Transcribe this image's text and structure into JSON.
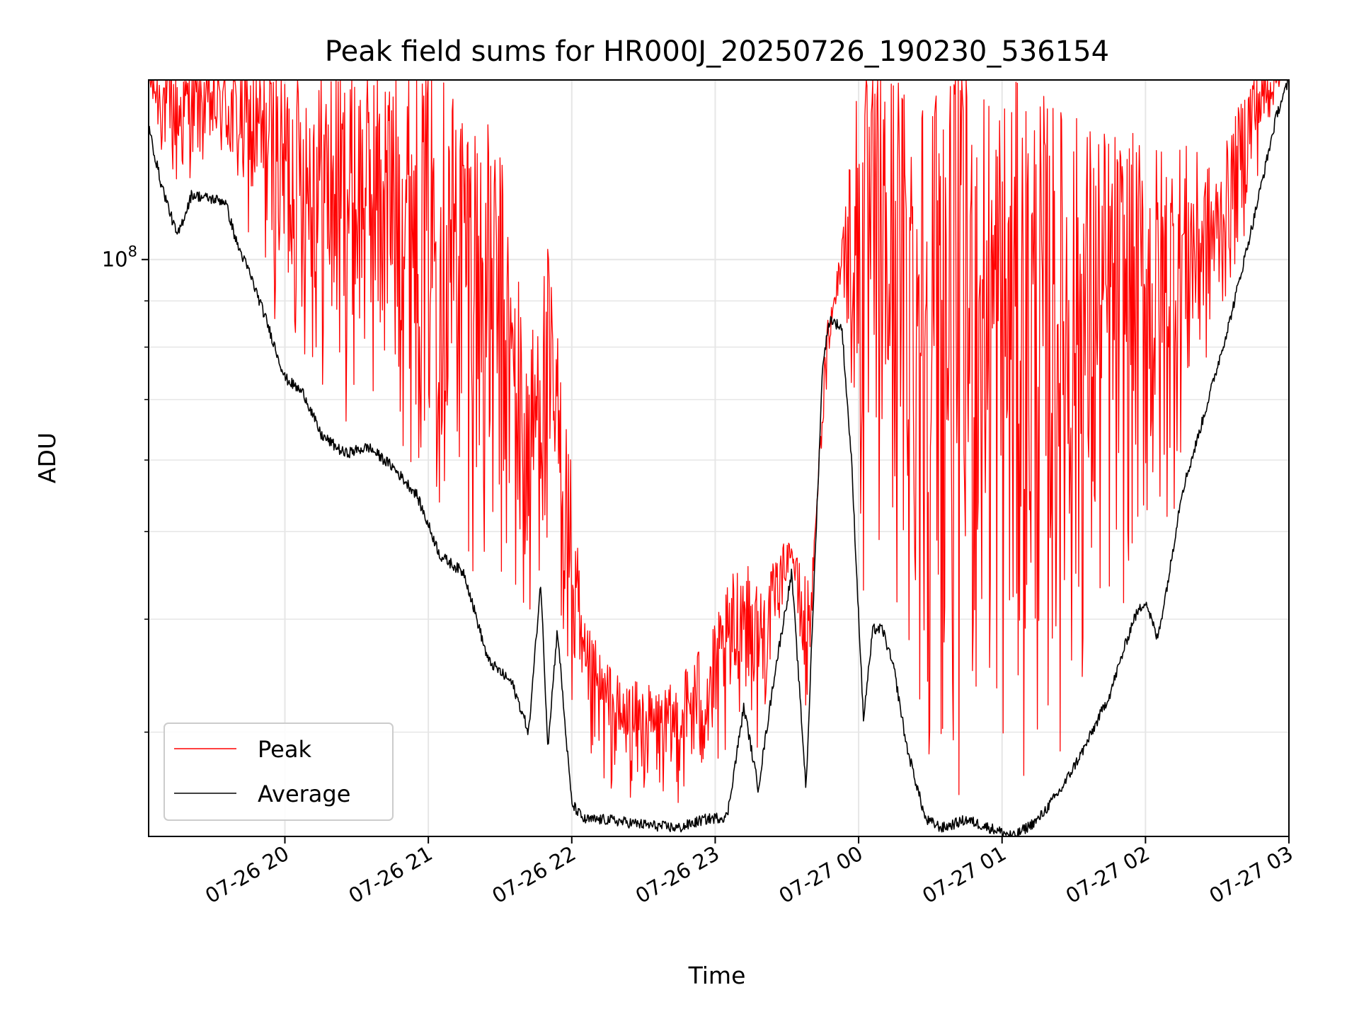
{
  "chart_data": {
    "type": "line",
    "title": "Peak field sums for HR000J_20250726_190230_536154",
    "xlabel": "Time",
    "ylabel": "ADU",
    "yscale": "log",
    "ylim": [
      23000000,
      158000000
    ],
    "xlim": [
      "2025-07-26 19:03",
      "2025-07-27 03:00"
    ],
    "x_ticks": [
      "07-26 20",
      "07-26 21",
      "07-26 22",
      "07-26 23",
      "07-27 00",
      "07-27 01",
      "07-27 02",
      "07-27 03"
    ],
    "y_ticks": [
      {
        "base": "10",
        "exp": "8",
        "value": 100000000
      }
    ],
    "grid": true,
    "legend": {
      "position": "lower left",
      "entries": [
        "Peak",
        "Average"
      ]
    },
    "series": [
      {
        "name": "Average",
        "color": "#000000",
        "x": [
          "2025-07-26 19:03",
          "2025-07-26 19:08",
          "2025-07-26 19:15",
          "2025-07-26 19:21",
          "2025-07-26 19:27",
          "2025-07-26 19:35",
          "2025-07-26 19:40",
          "2025-07-26 19:45",
          "2025-07-26 19:52",
          "2025-07-26 20:00",
          "2025-07-26 20:08",
          "2025-07-26 20:15",
          "2025-07-26 20:25",
          "2025-07-26 20:35",
          "2025-07-26 20:45",
          "2025-07-26 20:55",
          "2025-07-26 21:05",
          "2025-07-26 21:15",
          "2025-07-26 21:25",
          "2025-07-26 21:35",
          "2025-07-26 21:42",
          "2025-07-26 21:47",
          "2025-07-26 21:50",
          "2025-07-26 21:54",
          "2025-07-26 21:57",
          "2025-07-26 22:00",
          "2025-07-26 22:05",
          "2025-07-26 22:15",
          "2025-07-26 22:30",
          "2025-07-26 22:45",
          "2025-07-26 22:55",
          "2025-07-26 23:05",
          "2025-07-26 23:12",
          "2025-07-26 23:18",
          "2025-07-26 23:25",
          "2025-07-26 23:32",
          "2025-07-26 23:38",
          "2025-07-26 23:45",
          "2025-07-26 23:48",
          "2025-07-26 23:53",
          "2025-07-26 23:57",
          "2025-07-27 00:02",
          "2025-07-27 00:06",
          "2025-07-27 00:10",
          "2025-07-27 00:15",
          "2025-07-27 00:20",
          "2025-07-27 00:28",
          "2025-07-27 00:35",
          "2025-07-27 00:45",
          "2025-07-27 00:55",
          "2025-07-27 01:05",
          "2025-07-27 01:15",
          "2025-07-27 01:25",
          "2025-07-27 01:35",
          "2025-07-27 01:45",
          "2025-07-27 01:55",
          "2025-07-27 02:00",
          "2025-07-27 02:05",
          "2025-07-27 02:10",
          "2025-07-27 02:15",
          "2025-07-27 02:20",
          "2025-07-27 02:25",
          "2025-07-27 02:35",
          "2025-07-27 02:45",
          "2025-07-27 02:55",
          "2025-07-27 03:00"
        ],
        "values": [
          140000000,
          122000000,
          106000000,
          118000000,
          117000000,
          116000000,
          104000000,
          97000000,
          86000000,
          74000000,
          71000000,
          64000000,
          61000000,
          62000000,
          59000000,
          55000000,
          47000000,
          45000000,
          36000000,
          34000000,
          30000000,
          44000000,
          29000000,
          39000000,
          31000000,
          25000000,
          24000000,
          24000000,
          23700000,
          23500000,
          24000000,
          24200000,
          32000000,
          26000000,
          35000000,
          45000000,
          26000000,
          77000000,
          86000000,
          84000000,
          60000000,
          31000000,
          39000000,
          39000000,
          35000000,
          29000000,
          24000000,
          23500000,
          24000000,
          23500000,
          23000000,
          24000000,
          26000000,
          29000000,
          33000000,
          40000000,
          42000000,
          38000000,
          45000000,
          55000000,
          61000000,
          68000000,
          85000000,
          110000000,
          145000000,
          158000000
        ]
      },
      {
        "name": "Peak",
        "color": "#ff0000",
        "x": [
          "2025-07-26 19:03",
          "2025-07-26 19:15",
          "2025-07-26 19:30",
          "2025-07-26 19:45",
          "2025-07-26 20:00",
          "2025-07-26 20:15",
          "2025-07-26 20:30",
          "2025-07-26 20:45",
          "2025-07-26 21:00",
          "2025-07-26 21:15",
          "2025-07-26 21:30",
          "2025-07-26 21:42",
          "2025-07-26 21:50",
          "2025-07-26 21:58",
          "2025-07-26 22:05",
          "2025-07-26 22:20",
          "2025-07-26 22:40",
          "2025-07-26 23:00",
          "2025-07-26 23:10",
          "2025-07-26 23:20",
          "2025-07-26 23:30",
          "2025-07-26 23:40",
          "2025-07-26 23:50",
          "2025-07-27 00:00",
          "2025-07-27 00:15",
          "2025-07-27 00:30",
          "2025-07-27 00:45",
          "2025-07-27 01:00",
          "2025-07-27 01:15",
          "2025-07-27 01:30",
          "2025-07-27 01:45",
          "2025-07-27 02:00",
          "2025-07-27 02:15",
          "2025-07-27 02:30",
          "2025-07-27 02:45",
          "2025-07-27 03:00"
        ],
        "values": [
          158000000,
          158000000,
          158000000,
          158000000,
          158000000,
          158000000,
          158000000,
          158000000,
          158000000,
          150000000,
          128000000,
          78000000,
          100000000,
          65000000,
          38000000,
          33000000,
          32000000,
          38000000,
          45000000,
          42000000,
          47000000,
          42000000,
          88000000,
          158000000,
          158000000,
          158000000,
          158000000,
          152000000,
          148000000,
          140000000,
          135000000,
          130000000,
          130000000,
          120000000,
          158000000,
          158000000
        ]
      }
    ]
  }
}
